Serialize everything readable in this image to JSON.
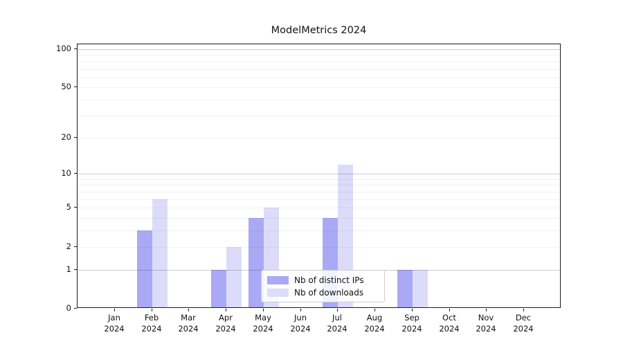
{
  "title": "ModelMetrics 2024",
  "legend": {
    "items": [
      {
        "label": "Nb of distinct IPs",
        "color": "#a9a9f6"
      },
      {
        "label": "Nb of downloads",
        "color": "#dcdcfa"
      }
    ]
  },
  "chart_data": {
    "type": "bar",
    "title": "ModelMetrics 2024",
    "xlabel": "",
    "ylabel": "",
    "categories": [
      "Jan 2024",
      "Feb 2024",
      "Mar 2024",
      "Apr 2024",
      "May 2024",
      "Jun 2024",
      "Jul 2024",
      "Aug 2024",
      "Sep 2024",
      "Oct 2024",
      "Nov 2024",
      "Dec 2024"
    ],
    "series": [
      {
        "name": "Nb of distinct IPs",
        "color": "#a9a9f6",
        "values": [
          0,
          3,
          0,
          1,
          4,
          0,
          4,
          0,
          1,
          0,
          0,
          0
        ]
      },
      {
        "name": "Nb of downloads",
        "color": "#dcdcfa",
        "values": [
          0,
          6,
          0,
          2,
          5,
          0,
          12,
          0,
          1,
          0,
          0,
          0
        ]
      }
    ],
    "yscale": "log1p",
    "ylim": [
      0,
      109
    ],
    "yticks": [
      0,
      1,
      2,
      5,
      10,
      20,
      50,
      100
    ],
    "ytick_labels": [
      "0",
      "1",
      "2",
      "5",
      "10",
      "20",
      "50",
      "100"
    ],
    "minor_gridlines": [
      2,
      3,
      4,
      5,
      6,
      7,
      8,
      9,
      20,
      30,
      40,
      50,
      60,
      70,
      80,
      90
    ],
    "major_gridlines": [
      1,
      10,
      100
    ],
    "grid": true,
    "legend_position": "lower center"
  }
}
